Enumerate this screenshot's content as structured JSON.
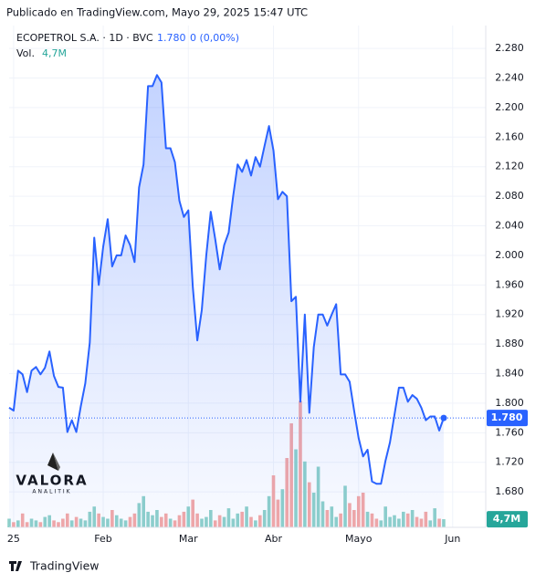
{
  "header": "Publicado en TradingView.com, Mayo 29, 2025 15:47 UTC",
  "footer": "TradingView",
  "logo": {
    "name": "VALORA",
    "tagline": "ANALITIK"
  },
  "chart_data": {
    "type": "line",
    "categories": [
      null,
      "25",
      null,
      null,
      null,
      null,
      null,
      null,
      null,
      null,
      null,
      null,
      null,
      null,
      null,
      null,
      null,
      null,
      null,
      null,
      null,
      "Feb",
      null,
      null,
      null,
      null,
      null,
      null,
      null,
      null,
      null,
      null,
      null,
      null,
      null,
      null,
      null,
      null,
      null,
      null,
      "Mar",
      null,
      null,
      null,
      null,
      null,
      null,
      null,
      null,
      null,
      null,
      null,
      null,
      null,
      null,
      null,
      null,
      null,
      null,
      "Abr",
      null,
      null,
      null,
      null,
      null,
      null,
      null,
      null,
      null,
      null,
      null,
      null,
      null,
      null,
      null,
      null,
      null,
      null,
      "Mayo",
      null,
      null,
      null,
      null,
      null,
      null,
      null,
      null,
      null,
      null,
      null,
      null,
      null,
      null,
      null,
      null,
      null,
      null,
      null,
      null,
      "Jun",
      null,
      null,
      null,
      null
    ],
    "series": [
      {
        "name": "ECOPETROL S.A. · 1D · BVC",
        "color": "#2962ff",
        "values": [
          1.794,
          1.79,
          1.844,
          1.839,
          1.815,
          1.844,
          1.849,
          1.839,
          1.848,
          1.87,
          1.837,
          1.822,
          1.821,
          1.761,
          1.777,
          1.761,
          1.796,
          1.827,
          1.882,
          2.024,
          1.96,
          2.012,
          2.049,
          1.985,
          2.0,
          2.0,
          2.027,
          2.014,
          1.991,
          2.092,
          2.123,
          2.229,
          2.229,
          2.244,
          2.234,
          2.145,
          2.145,
          2.126,
          2.074,
          2.052,
          2.061,
          1.957,
          1.885,
          1.926,
          2.0,
          2.059,
          2.022,
          1.981,
          2.014,
          2.031,
          2.08,
          2.123,
          2.113,
          2.129,
          2.108,
          2.133,
          2.12,
          2.148,
          2.175,
          2.142,
          2.076,
          2.086,
          2.08,
          1.938,
          1.944,
          1.802,
          1.92,
          1.787,
          1.876,
          1.92,
          1.92,
          1.905,
          1.92,
          1.934,
          1.839,
          1.839,
          1.829,
          1.79,
          1.753,
          1.728,
          1.737,
          1.694,
          1.691,
          1.691,
          1.722,
          1.747,
          1.784,
          1.821,
          1.821,
          1.802,
          1.811,
          1.806,
          1.794,
          1.777,
          1.782,
          1.782,
          1.763,
          1.78,
          null,
          null,
          null,
          null,
          null,
          null
        ]
      },
      {
        "name": "Vol.",
        "up_color": "#8fd1ca",
        "down_color": "#f4a8a6",
        "values": [
          5,
          3,
          4,
          8,
          3,
          5,
          4,
          3,
          6,
          7,
          4,
          3,
          5,
          8,
          4,
          6,
          5,
          4,
          9,
          12,
          8,
          6,
          5,
          10,
          7,
          5,
          4,
          6,
          8,
          14,
          18,
          9,
          7,
          10,
          6,
          8,
          5,
          4,
          7,
          9,
          12,
          16,
          8,
          5,
          6,
          10,
          4,
          7,
          6,
          11,
          5,
          8,
          9,
          12,
          6,
          4,
          7,
          10,
          18,
          30,
          16,
          22,
          40,
          60,
          45,
          73,
          38,
          26,
          20,
          35,
          15,
          10,
          12,
          6,
          8,
          24,
          14,
          10,
          18,
          20,
          9,
          8,
          5,
          4,
          12,
          6,
          7,
          5,
          9,
          8,
          10,
          6,
          5,
          9,
          4,
          11,
          5,
          4.7,
          null,
          null,
          null,
          null,
          null,
          null
        ]
      }
    ],
    "last_price": {
      "value": 1.78,
      "label": "1.780"
    },
    "change": "0 (0,00%)",
    "last_volume": {
      "value": 4.7,
      "label": "4,7M"
    },
    "ylim": [
      1.632,
      2.311
    ],
    "yticks": [
      {
        "value": 2.28,
        "label": "2.280"
      },
      {
        "value": 2.24,
        "label": "2.240"
      },
      {
        "value": 2.2,
        "label": "2.200"
      },
      {
        "value": 2.16,
        "label": "2.160"
      },
      {
        "value": 2.12,
        "label": "2.120"
      },
      {
        "value": 2.08,
        "label": "2.080"
      },
      {
        "value": 2.04,
        "label": "2.040"
      },
      {
        "value": 2.0,
        "label": "2.000"
      },
      {
        "value": 1.96,
        "label": "1.960"
      },
      {
        "value": 1.92,
        "label": "1.920"
      },
      {
        "value": 1.88,
        "label": "1.880"
      },
      {
        "value": 1.84,
        "label": "1.840"
      },
      {
        "value": 1.8,
        "label": "1.800"
      },
      {
        "value": 1.76,
        "label": "1.760"
      },
      {
        "value": 1.72,
        "label": "1.720"
      },
      {
        "value": 1.68,
        "label": "1.680"
      }
    ],
    "grid": true
  }
}
